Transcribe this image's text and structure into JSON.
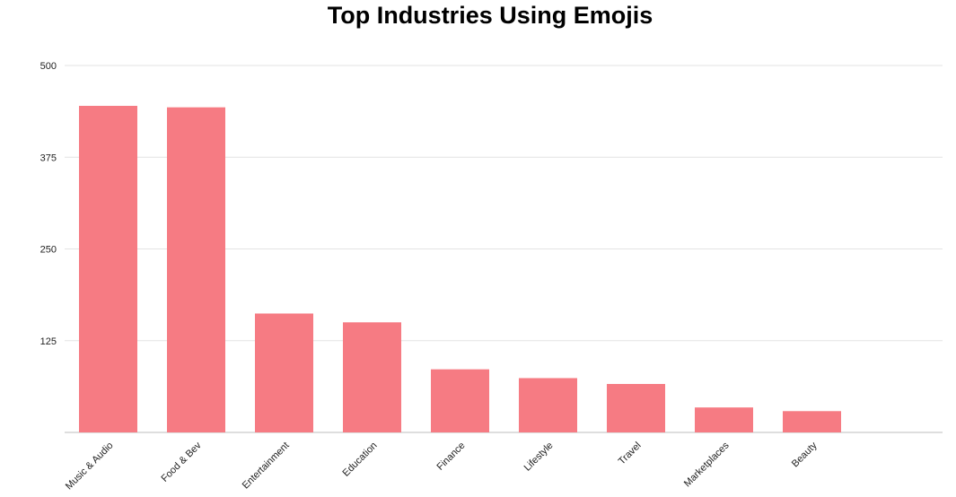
{
  "chart_data": {
    "type": "bar",
    "title": "Top Industries Using Emojis",
    "categories": [
      "Music & Audio",
      "Food & Bev",
      "Entertainment",
      "Education",
      "Finance",
      "Lifestyle",
      "Travel",
      "Marketplaces",
      "Beauty"
    ],
    "values": [
      445,
      443,
      162,
      150,
      86,
      74,
      66,
      34,
      29
    ],
    "ylim": [
      0,
      500
    ],
    "yticks": [
      "125",
      "250",
      "375",
      "500"
    ],
    "grid": true,
    "bar_color": "#f67b83",
    "xlabel": "",
    "ylabel": ""
  }
}
